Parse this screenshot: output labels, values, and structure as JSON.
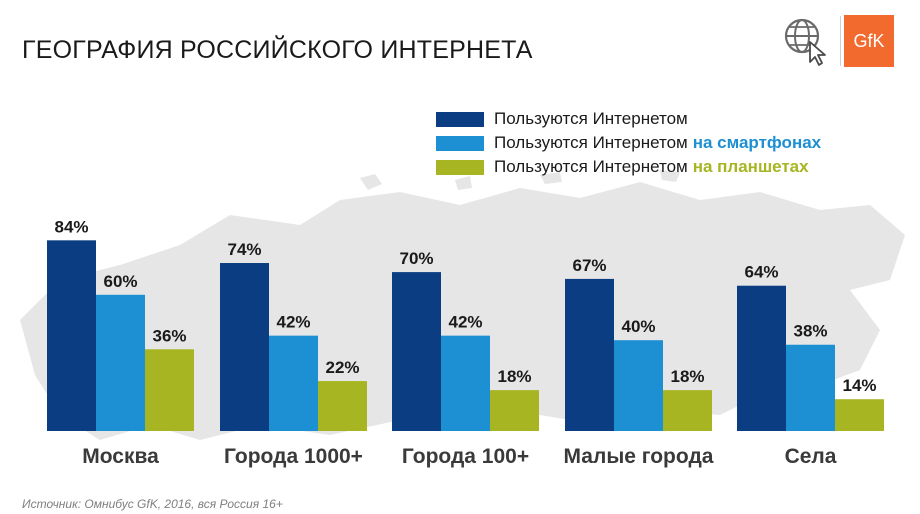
{
  "header": {
    "title": "ГЕОГРАФИЯ РОССИЙСКОГО ИНТЕРНЕТА",
    "logo_text": "GfK",
    "globe_icon": "globe-cursor-icon"
  },
  "colors": {
    "series_internet": "#0b3d82",
    "series_smartphone": "#1d8fd3",
    "series_tablet": "#a6b521",
    "logo_bg": "#f26a2d"
  },
  "legend": {
    "placement": "top-right",
    "items": [
      {
        "text": "Пользуются Интернетом",
        "highlight": ""
      },
      {
        "text": "Пользуются Интернетом",
        "highlight": "на смартфонах"
      },
      {
        "text": "Пользуются Интернетом",
        "highlight": "на планшетах"
      }
    ]
  },
  "chart_data": {
    "type": "bar",
    "title": "ГЕОГРАФИЯ РОССИЙСКОГО ИНТЕРНЕТА",
    "categories": [
      "Москва",
      "Города 1000+",
      "Города 100+",
      "Малые города",
      "Села"
    ],
    "series": [
      {
        "name": "Пользуются Интернетом",
        "values": [
          84,
          74,
          70,
          67,
          64
        ],
        "labels": [
          "84%",
          "74%",
          "70%",
          "67%",
          "64%"
        ]
      },
      {
        "name": "Пользуются Интернетом на смартфонах",
        "values": [
          60,
          42,
          42,
          40,
          38
        ],
        "labels": [
          "60%",
          "42%",
          "42%",
          "40%",
          "38%"
        ]
      },
      {
        "name": "Пользуются Интернетом на планшетах",
        "values": [
          36,
          22,
          18,
          18,
          14
        ],
        "labels": [
          "36%",
          "22%",
          "18%",
          "18%",
          "14%"
        ]
      }
    ],
    "ylim": [
      0,
      100
    ],
    "grid": false
  },
  "footer": {
    "source": "Источник: Омнибус GfK, 2016, вся Россия 16+"
  }
}
